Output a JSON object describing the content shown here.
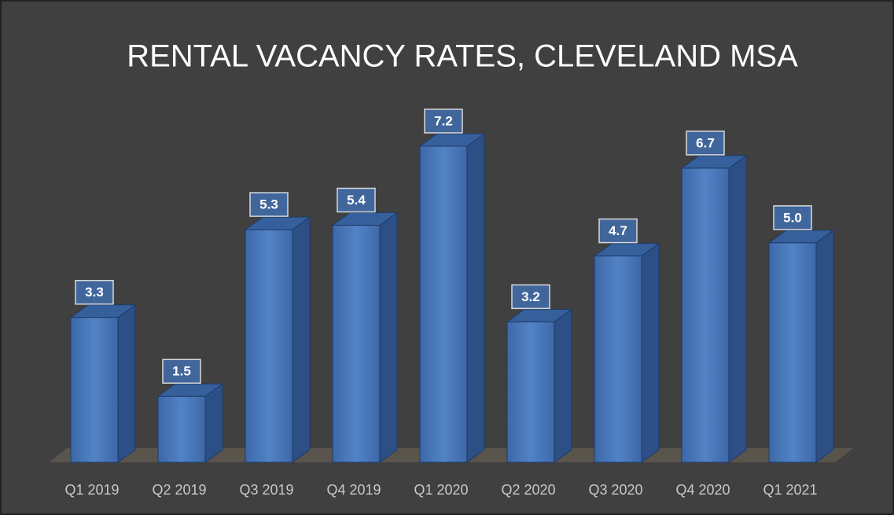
{
  "chart_data": {
    "type": "bar3d",
    "title": "RENTAL VACANCY RATES, CLEVELAND MSA",
    "categories": [
      "Q1 2019",
      "Q2 2019",
      "Q3 2019",
      "Q4 2019",
      "Q1 2020",
      "Q2 2020",
      "Q3 2020",
      "Q4 2020",
      "Q1 2021"
    ],
    "values": [
      3.3,
      1.5,
      5.3,
      5.4,
      7.2,
      3.2,
      4.7,
      6.7,
      5.0
    ],
    "value_labels": [
      "3.3",
      "1.5",
      "5.3",
      "5.4",
      "7.2",
      "3.2",
      "4.7",
      "6.7",
      "5.0"
    ],
    "color": "#4a78bb"
  }
}
